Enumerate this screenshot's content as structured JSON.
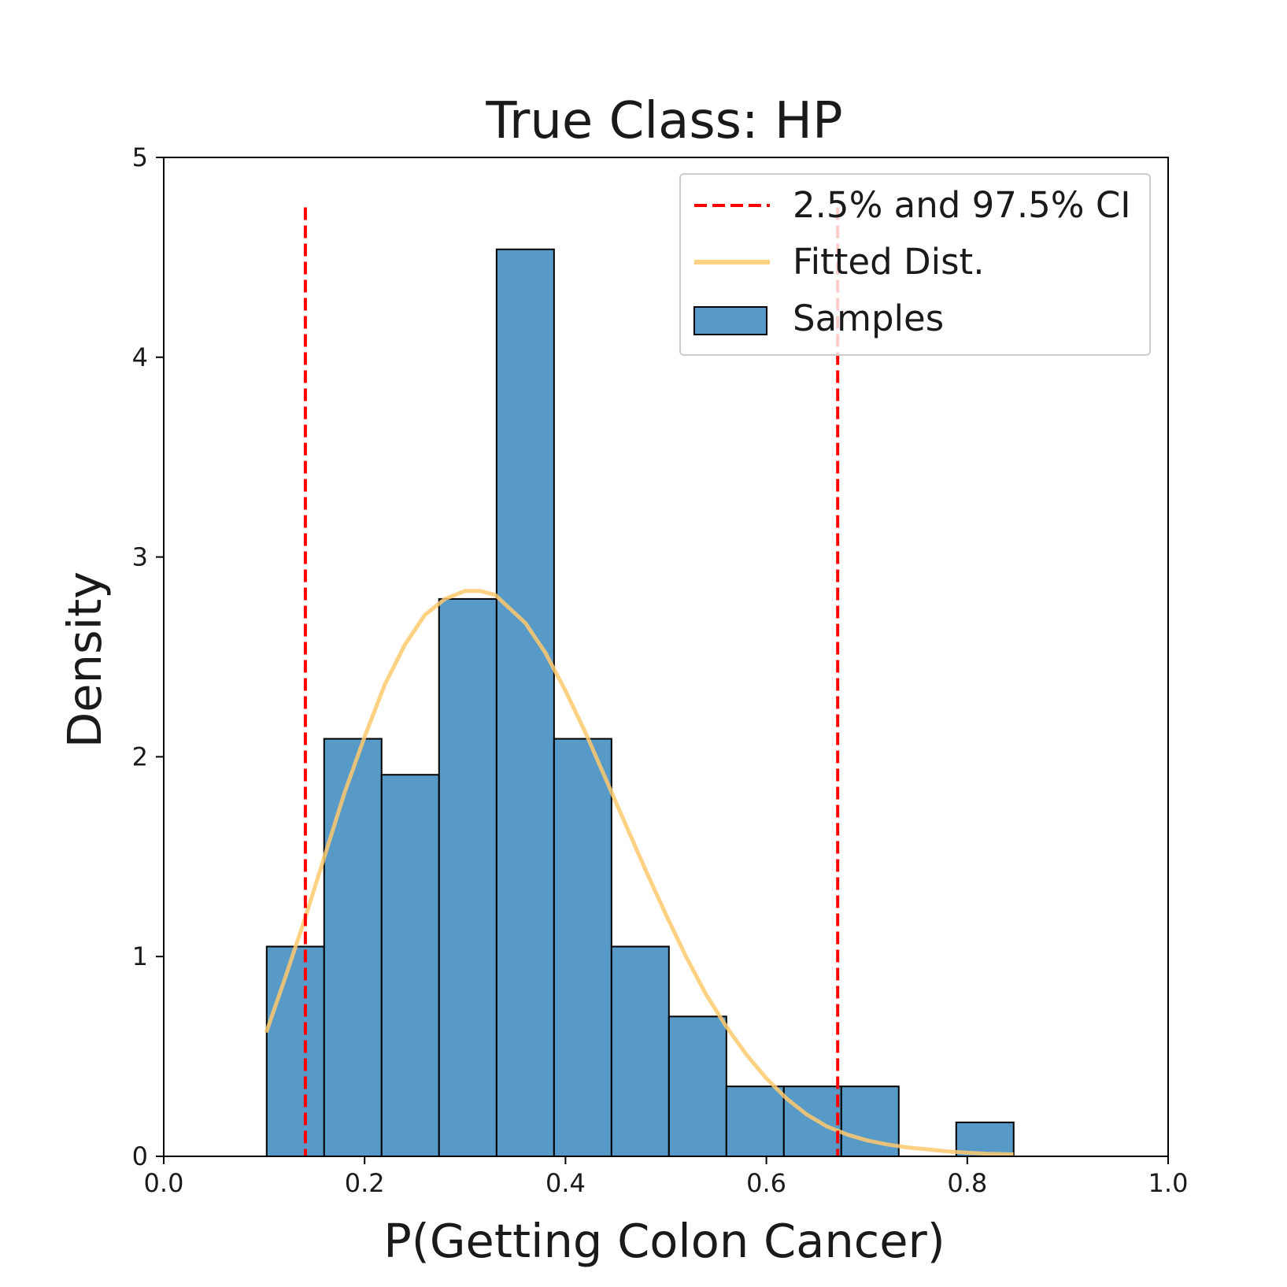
{
  "chart_data": {
    "type": "histogram",
    "title": "True Class: HP",
    "xlabel": "P(Getting Colon Cancer)",
    "ylabel": "Density",
    "xlim": [
      0.0,
      1.0
    ],
    "ylim": [
      0,
      5
    ],
    "xticks": [
      0.0,
      0.2,
      0.4,
      0.6,
      0.8,
      1.0
    ],
    "xtick_labels": [
      "0.0",
      "0.2",
      "0.4",
      "0.6",
      "0.8",
      "1.0"
    ],
    "yticks": [
      0,
      1,
      2,
      3,
      4,
      5
    ],
    "ytick_labels": [
      "0",
      "1",
      "2",
      "3",
      "4",
      "5"
    ],
    "grid": false,
    "legend_position": "top-right",
    "histogram": {
      "name": "Samples",
      "color": "#5799c7",
      "edge_color": "#000000",
      "bins": [
        {
          "x0": 0.1025,
          "x1": 0.1597,
          "density": 1.05
        },
        {
          "x0": 0.1597,
          "x1": 0.2169,
          "density": 2.09
        },
        {
          "x0": 0.2169,
          "x1": 0.2741,
          "density": 1.91
        },
        {
          "x0": 0.2741,
          "x1": 0.3314,
          "density": 2.79
        },
        {
          "x0": 0.3314,
          "x1": 0.3886,
          "density": 4.54
        },
        {
          "x0": 0.3886,
          "x1": 0.4458,
          "density": 2.09
        },
        {
          "x0": 0.4458,
          "x1": 0.503,
          "density": 1.05
        },
        {
          "x0": 0.503,
          "x1": 0.5602,
          "density": 0.7
        },
        {
          "x0": 0.5602,
          "x1": 0.6174,
          "density": 0.35
        },
        {
          "x0": 0.6174,
          "x1": 0.6746,
          "density": 0.35
        },
        {
          "x0": 0.6746,
          "x1": 0.7318,
          "density": 0.35
        },
        {
          "x0": 0.7318,
          "x1": 0.789,
          "density": 0.0
        },
        {
          "x0": 0.789,
          "x1": 0.8462,
          "density": 0.17
        }
      ]
    },
    "fitted_distribution": {
      "name": "Fitted Dist.",
      "color": "#fec96d",
      "x": [
        0.102,
        0.12,
        0.14,
        0.16,
        0.18,
        0.2,
        0.22,
        0.24,
        0.26,
        0.28,
        0.3,
        0.315,
        0.33,
        0.36,
        0.38,
        0.4,
        0.42,
        0.44,
        0.46,
        0.48,
        0.5,
        0.52,
        0.54,
        0.56,
        0.58,
        0.6,
        0.62,
        0.64,
        0.66,
        0.68,
        0.7,
        0.72,
        0.74,
        0.76,
        0.78,
        0.8,
        0.82,
        0.846
      ],
      "y": [
        0.62,
        0.88,
        1.18,
        1.5,
        1.82,
        2.1,
        2.36,
        2.56,
        2.71,
        2.79,
        2.83,
        2.83,
        2.81,
        2.67,
        2.52,
        2.33,
        2.12,
        1.89,
        1.66,
        1.43,
        1.21,
        1.0,
        0.81,
        0.65,
        0.51,
        0.39,
        0.29,
        0.21,
        0.15,
        0.11,
        0.08,
        0.06,
        0.045,
        0.035,
        0.025,
        0.018,
        0.013,
        0.01
      ]
    },
    "ci_lines": {
      "name": "2.5% and 97.5% CI",
      "color": "#ff0000",
      "x": [
        0.141,
        0.671
      ],
      "y_top": 4.75
    },
    "legend": [
      {
        "label": "2.5% and 97.5% CI",
        "kind": "dashed-line"
      },
      {
        "label": "Fitted Dist.",
        "kind": "line"
      },
      {
        "label": "Samples",
        "kind": "patch"
      }
    ]
  }
}
